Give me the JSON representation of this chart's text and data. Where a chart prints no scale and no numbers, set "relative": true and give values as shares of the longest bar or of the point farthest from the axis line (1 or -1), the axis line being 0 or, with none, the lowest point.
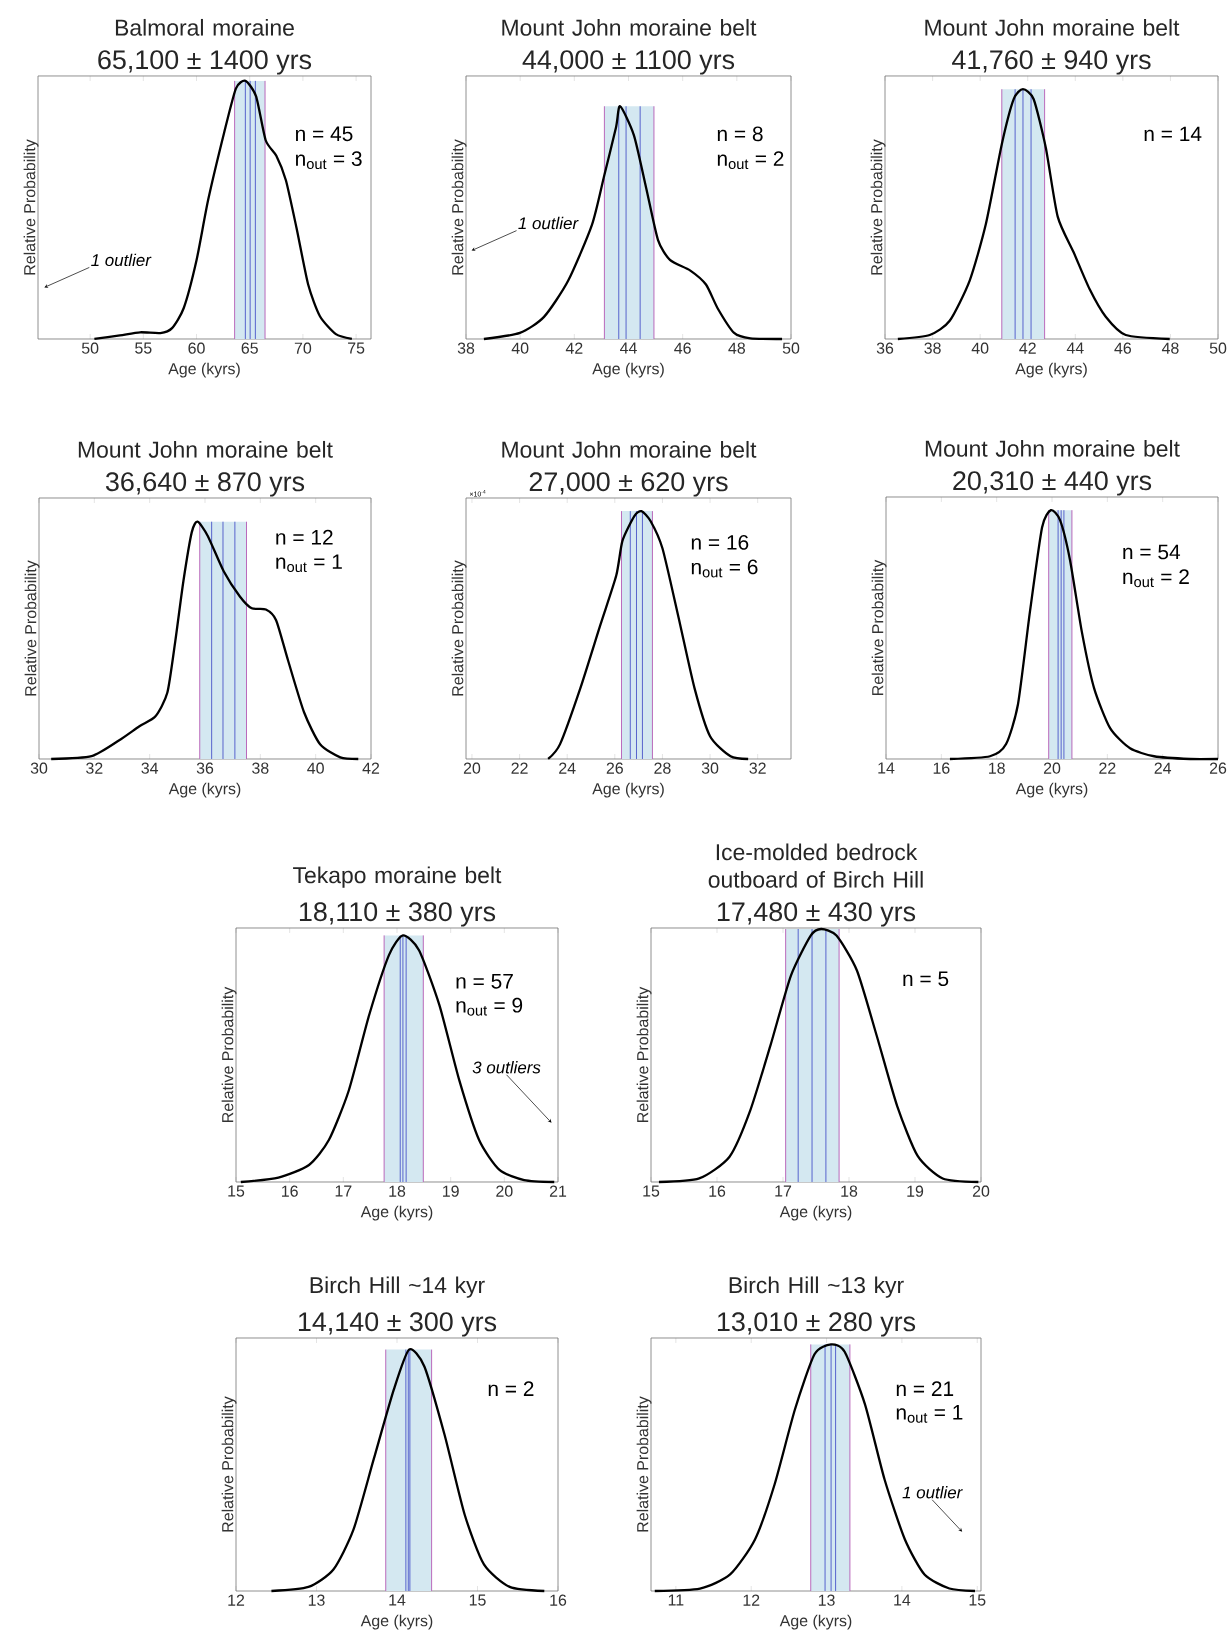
{
  "chart_data": [
    {
      "type": "line",
      "title": "Balmoral moraine",
      "subtitle": "65,100 ± 1400 yrs",
      "xlabel": "Age (kyrs)",
      "ylabel": "Relative Probability",
      "relative": true,
      "color": "#000000",
      "xlim": [
        45.1,
        76.4
      ],
      "xticks": [
        50,
        55,
        60,
        65,
        70,
        75
      ],
      "x": [
        50.4,
        52.8,
        54.7,
        56.6,
        57.7,
        58.8,
        60.0,
        61.1,
        62.6,
        63.7,
        64.6,
        65.6,
        66.5,
        67.5,
        68.4,
        69.4,
        70.5,
        71.6,
        73.1,
        74.6
      ],
      "values": [
        0,
        0.014,
        0.026,
        0.023,
        0.042,
        0.12,
        0.305,
        0.54,
        0.8,
        0.97,
        1,
        0.94,
        0.77,
        0.71,
        0.615,
        0.43,
        0.21,
        0.088,
        0.019,
        0
      ],
      "bands": [
        {
          "axis": "x",
          "from": 63.58,
          "to": 66.44,
          "color": "#d4e8f1"
        }
      ],
      "ref_lines": [
        {
          "axis": "x",
          "value": 63.58,
          "color": "#b45ab4"
        },
        {
          "axis": "x",
          "value": 66.44,
          "color": "#b45ab4"
        },
        {
          "axis": "x",
          "value": 64.59,
          "color": "#4a55c8"
        },
        {
          "axis": "x",
          "value": 65.04,
          "color": "#4a55c8"
        },
        {
          "axis": "x",
          "value": 65.53,
          "color": "#4a55c8"
        }
      ],
      "annotations": [
        "n = 45",
        "n$_{out}$ = 3",
        "1 outlier"
      ]
    },
    {
      "type": "line",
      "title": "Mount John moraine belt",
      "subtitle": "44,000 ± 1100 yrs",
      "xlabel": "Age (kyrs)",
      "ylabel": "Relative Probability",
      "relative": true,
      "color": "#000000",
      "xlim": [
        38,
        50
      ],
      "xticks": [
        38,
        40,
        42,
        44,
        46,
        48,
        50
      ],
      "x": [
        38.66,
        39.99,
        40.88,
        41.77,
        42.65,
        43.1,
        43.54,
        43.69,
        44.2,
        44.65,
        45.09,
        45.53,
        46.27,
        46.86,
        47.3,
        47.9,
        48.5,
        49.67
      ],
      "values": [
        0,
        0.026,
        0.095,
        0.25,
        0.49,
        0.7,
        0.91,
        1,
        0.875,
        0.65,
        0.425,
        0.34,
        0.295,
        0.234,
        0.13,
        0.026,
        0.003,
        0
      ],
      "bands": [
        {
          "axis": "x",
          "from": 43.11,
          "to": 44.94,
          "color": "#d4e8f1"
        }
      ],
      "ref_lines": [
        {
          "axis": "x",
          "value": 43.11,
          "color": "#b45ab4"
        },
        {
          "axis": "x",
          "value": 44.94,
          "color": "#b45ab4"
        },
        {
          "axis": "x",
          "value": 43.64,
          "color": "#4a55c8"
        },
        {
          "axis": "x",
          "value": 43.91,
          "color": "#4a55c8"
        },
        {
          "axis": "x",
          "value": 44.43,
          "color": "#4a55c8"
        }
      ],
      "annotations": [
        "n = 8",
        "n$_{out}$ = 2",
        "1 outlier"
      ]
    },
    {
      "type": "line",
      "title": "Mount John moraine belt",
      "subtitle": "41,760 ± 940 yrs",
      "xlabel": "Age (kyrs)",
      "ylabel": "Relative Probability",
      "relative": true,
      "color": "#000000",
      "xlim": [
        36,
        50
      ],
      "xticks": [
        36,
        38,
        40,
        42,
        44,
        46,
        48,
        50
      ],
      "x": [
        36.54,
        37.88,
        38.72,
        39.56,
        40.24,
        40.91,
        41.41,
        41.8,
        42.25,
        42.76,
        43.26,
        43.93,
        44.6,
        45.28,
        46.12,
        47.97
      ],
      "values": [
        0,
        0.016,
        0.073,
        0.234,
        0.46,
        0.78,
        0.96,
        1,
        0.96,
        0.766,
        0.49,
        0.347,
        0.2,
        0.089,
        0.016,
        0
      ],
      "bands": [
        {
          "axis": "x",
          "from": 40.91,
          "to": 42.71,
          "color": "#d4e8f1"
        }
      ],
      "ref_lines": [
        {
          "axis": "x",
          "value": 40.91,
          "color": "#b45ab4"
        },
        {
          "axis": "x",
          "value": 42.71,
          "color": "#b45ab4"
        },
        {
          "axis": "x",
          "value": 41.47,
          "color": "#4a55c8"
        },
        {
          "axis": "x",
          "value": 41.8,
          "color": "#4a55c8"
        },
        {
          "axis": "x",
          "value": 42.14,
          "color": "#4a55c8"
        }
      ],
      "annotations": [
        "n = 14"
      ]
    },
    {
      "type": "line",
      "title": "Mount John moraine belt",
      "subtitle": "36,640 ± 870 yrs",
      "xlabel": "Age (kyrs)",
      "ylabel": "Relative Probability",
      "relative": true,
      "color": "#000000",
      "xlim": [
        30,
        42
      ],
      "xticks": [
        30,
        32,
        34,
        36,
        38,
        40,
        42
      ],
      "x": [
        30.44,
        31.9,
        32.9,
        33.63,
        34.21,
        34.64,
        34.93,
        35.22,
        35.52,
        35.73,
        36.1,
        36.68,
        37.26,
        37.69,
        38.2,
        38.57,
        39.0,
        39.58,
        40.16,
        40.89,
        41.54
      ],
      "values": [
        0,
        0.012,
        0.079,
        0.138,
        0.18,
        0.28,
        0.5,
        0.75,
        0.955,
        1,
        0.94,
        0.79,
        0.685,
        0.635,
        0.63,
        0.585,
        0.416,
        0.197,
        0.062,
        0.007,
        0
      ],
      "bands": [
        {
          "axis": "x",
          "from": 35.81,
          "to": 37.5,
          "color": "#d4e8f1"
        }
      ],
      "ref_lines": [
        {
          "axis": "x",
          "value": 35.81,
          "color": "#b45ab4"
        },
        {
          "axis": "x",
          "value": 37.5,
          "color": "#b45ab4"
        },
        {
          "axis": "x",
          "value": 36.24,
          "color": "#4a55c8"
        },
        {
          "axis": "x",
          "value": 36.65,
          "color": "#4a55c8"
        },
        {
          "axis": "x",
          "value": 37.08,
          "color": "#4a55c8"
        }
      ],
      "annotations": [
        "n = 12",
        "n$_{out}$ = 1"
      ]
    },
    {
      "type": "line",
      "title": "Mount John moraine belt",
      "subtitle": "27,000 ± 620 yrs",
      "xlabel": "Age (kyrs)",
      "ylabel": "Relative Probability",
      "relative": true,
      "color": "#000000",
      "xlim": [
        19.75,
        33.4
      ],
      "xticks": [
        20,
        22,
        24,
        26,
        28,
        30,
        32
      ],
      "x": [
        23.2,
        23.7,
        24.55,
        25.39,
        26.06,
        26.32,
        26.82,
        27.12,
        27.5,
        28.0,
        28.67,
        29.35,
        30.0,
        30.86,
        31.6
      ],
      "values": [
        0,
        0.06,
        0.285,
        0.54,
        0.74,
        0.88,
        0.98,
        1,
        0.96,
        0.85,
        0.574,
        0.285,
        0.092,
        0.011,
        0
      ],
      "bands": [
        {
          "axis": "x",
          "from": 26.28,
          "to": 27.58,
          "color": "#d4e8f1"
        }
      ],
      "ref_lines": [
        {
          "axis": "x",
          "value": 26.28,
          "color": "#b45ab4"
        },
        {
          "axis": "x",
          "value": 27.58,
          "color": "#b45ab4"
        },
        {
          "axis": "x",
          "value": 26.65,
          "color": "#4a55c8"
        },
        {
          "axis": "x",
          "value": 26.91,
          "color": "#4a55c8"
        },
        {
          "axis": "x",
          "value": 27.16,
          "color": "#4a55c8"
        }
      ],
      "annotations": [
        "n = 16",
        "n$_{out}$ = 6",
        "×10$^{-4}$"
      ]
    },
    {
      "type": "line",
      "title": "Mount John moraine belt",
      "subtitle": "20,310 ± 440 yrs",
      "xlabel": "Age (kyrs)",
      "ylabel": "Relative Probability",
      "relative": true,
      "color": "#000000",
      "xlim": [
        14,
        26
      ],
      "xticks": [
        14,
        16,
        18,
        20,
        22,
        24,
        26
      ],
      "x": [
        16.31,
        17.76,
        18.34,
        18.77,
        19.2,
        19.64,
        19.96,
        20.29,
        20.65,
        21.08,
        21.52,
        22.1,
        22.82,
        23.69,
        24.99,
        26
      ],
      "values": [
        0,
        0.011,
        0.06,
        0.22,
        0.59,
        0.93,
        1,
        0.96,
        0.8,
        0.51,
        0.285,
        0.124,
        0.043,
        0.011,
        0,
        0
      ],
      "bands": [
        {
          "axis": "x",
          "from": 19.88,
          "to": 20.72,
          "color": "#d4e8f1"
        }
      ],
      "ref_lines": [
        {
          "axis": "x",
          "value": 19.88,
          "color": "#b45ab4"
        },
        {
          "axis": "x",
          "value": 20.72,
          "color": "#b45ab4"
        },
        {
          "axis": "x",
          "value": 20.22,
          "color": "#4a55c8"
        },
        {
          "axis": "x",
          "value": 20.33,
          "color": "#4a55c8"
        },
        {
          "axis": "x",
          "value": 20.43,
          "color": "#4a55c8"
        }
      ],
      "annotations": [
        "n = 54",
        "n$_{out}$ = 2"
      ]
    },
    {
      "type": "line",
      "title": "Tekapo moraine belt",
      "subtitle": "18,110 ± 380 yrs",
      "xlabel": "Age (kyrs)",
      "ylabel": "Relative Probability",
      "relative": true,
      "color": "#000000",
      "xlim": [
        15,
        21
      ],
      "xticks": [
        15,
        16,
        17,
        18,
        19,
        20,
        21
      ],
      "x": [
        15.09,
        15.79,
        16.36,
        16.73,
        17.1,
        17.48,
        17.85,
        18.11,
        18.41,
        18.79,
        19.16,
        19.53,
        19.91,
        20.37,
        20.93
      ],
      "values": [
        0,
        0.018,
        0.069,
        0.17,
        0.37,
        0.676,
        0.92,
        1,
        0.94,
        0.717,
        0.413,
        0.17,
        0.049,
        0.008,
        0
      ],
      "bands": [
        {
          "axis": "x",
          "from": 17.76,
          "to": 18.49,
          "color": "#d4e8f1"
        }
      ],
      "ref_lines": [
        {
          "axis": "x",
          "value": 17.76,
          "color": "#b45ab4"
        },
        {
          "axis": "x",
          "value": 18.49,
          "color": "#b45ab4"
        },
        {
          "axis": "x",
          "value": 18.06,
          "color": "#4a55c8"
        },
        {
          "axis": "x",
          "value": 18.11,
          "color": "#4a55c8"
        },
        {
          "axis": "x",
          "value": 18.17,
          "color": "#4a55c8"
        }
      ],
      "annotations": [
        "n = 57",
        "n$_{out}$ = 9",
        "3 outliers"
      ]
    },
    {
      "type": "line",
      "title": "Ice-molded bedrock outboard of Birch Hill",
      "subtitle": "17,480 ± 430 yrs",
      "xlabel": "Age (kyrs)",
      "ylabel": "Relative Probability",
      "relative": true,
      "color": "#000000",
      "xlim": [
        15,
        20
      ],
      "xticks": [
        15,
        16,
        17,
        18,
        19,
        20
      ],
      "x": [
        15.12,
        15.73,
        16.19,
        16.5,
        16.81,
        17.12,
        17.42,
        17.58,
        17.81,
        18.12,
        18.42,
        18.73,
        19.04,
        19.42,
        19.96
      ],
      "values": [
        0,
        0.014,
        0.1,
        0.28,
        0.54,
        0.816,
        0.974,
        1,
        0.974,
        0.836,
        0.578,
        0.3,
        0.103,
        0.014,
        0
      ],
      "bands": [
        {
          "axis": "x",
          "from": 17.04,
          "to": 17.85,
          "color": "#d4e8f1"
        }
      ],
      "ref_lines": [
        {
          "axis": "x",
          "value": 17.04,
          "color": "#b45ab4"
        },
        {
          "axis": "x",
          "value": 17.85,
          "color": "#b45ab4"
        },
        {
          "axis": "x",
          "value": 17.23,
          "color": "#4a55c8"
        },
        {
          "axis": "x",
          "value": 17.44,
          "color": "#4a55c8"
        },
        {
          "axis": "x",
          "value": 17.65,
          "color": "#4a55c8"
        }
      ],
      "annotations": [
        "n = 5"
      ]
    },
    {
      "type": "line",
      "title": "Birch Hill ~14 kyr",
      "subtitle": "14,140 ± 300 yrs",
      "xlabel": "Age (kyrs)",
      "ylabel": "Relative Probability",
      "relative": true,
      "color": "#000000",
      "xlim": [
        12,
        16
      ],
      "xticks": [
        12,
        13,
        14,
        15,
        16
      ],
      "x": [
        12.44,
        12.9,
        13.21,
        13.46,
        13.71,
        13.96,
        14.15,
        14.34,
        14.59,
        14.84,
        15.08,
        15.4,
        15.83
      ],
      "values": [
        0,
        0.017,
        0.089,
        0.255,
        0.545,
        0.834,
        1,
        0.93,
        0.648,
        0.317,
        0.11,
        0.017,
        0
      ],
      "bands": [
        {
          "axis": "x",
          "from": 13.86,
          "to": 14.43,
          "color": "#d4e8f1"
        }
      ],
      "ref_lines": [
        {
          "axis": "x",
          "value": 13.86,
          "color": "#b45ab4"
        },
        {
          "axis": "x",
          "value": 14.43,
          "color": "#b45ab4"
        },
        {
          "axis": "x",
          "value": 14.11,
          "color": "#4a55c8"
        },
        {
          "axis": "x",
          "value": 14.14,
          "color": "#4a55c8"
        },
        {
          "axis": "x",
          "value": 14.16,
          "color": "#4a55c8"
        }
      ],
      "annotations": [
        "n = 2"
      ]
    },
    {
      "type": "line",
      "title": "Birch Hill ~13 kyr",
      "subtitle": "13,010 ± 280 yrs",
      "xlabel": "Age (kyrs)",
      "ylabel": "Relative Probability",
      "relative": true,
      "color": "#000000",
      "xlim": [
        10.67,
        15.05
      ],
      "xticks": [
        11,
        12,
        13,
        14,
        15
      ],
      "x": [
        10.72,
        11.32,
        11.72,
        12.05,
        12.31,
        12.58,
        12.84,
        13.06,
        13.24,
        13.51,
        13.77,
        14.04,
        14.3,
        14.63,
        14.97
      ],
      "values": [
        0,
        0.01,
        0.067,
        0.209,
        0.432,
        0.736,
        0.96,
        1,
        0.97,
        0.757,
        0.452,
        0.209,
        0.067,
        0.01,
        0
      ],
      "bands": [
        {
          "axis": "x",
          "from": 12.79,
          "to": 13.31,
          "color": "#d4e8f1"
        }
      ],
      "ref_lines": [
        {
          "axis": "x",
          "value": 12.79,
          "color": "#b45ab4"
        },
        {
          "axis": "x",
          "value": 13.31,
          "color": "#b45ab4"
        },
        {
          "axis": "x",
          "value": 12.98,
          "color": "#4a55c8"
        },
        {
          "axis": "x",
          "value": 13.06,
          "color": "#4a55c8"
        },
        {
          "axis": "x",
          "value": 13.12,
          "color": "#4a55c8"
        }
      ],
      "annotations": [
        "n = 21",
        "n$_{out}$ = 1",
        "1 outlier"
      ]
    }
  ]
}
